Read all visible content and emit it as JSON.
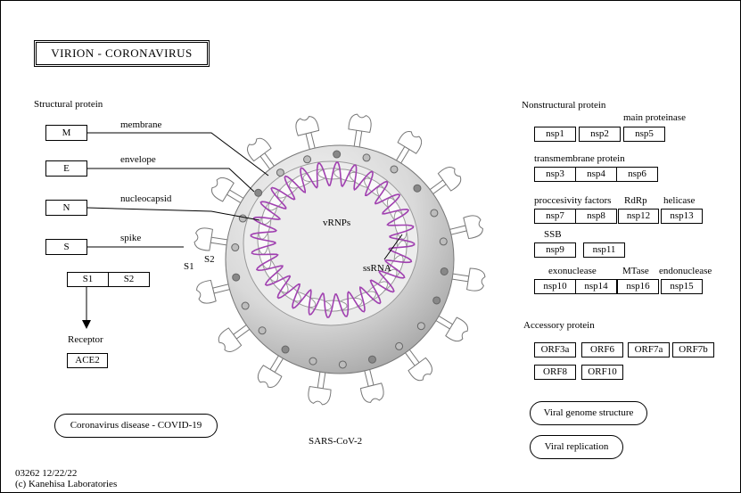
{
  "title": "VIRION  -  CORONAVIRUS",
  "structural": {
    "heading": "Structural protein",
    "proteins": [
      {
        "label": "M",
        "desc": "membrane"
      },
      {
        "label": "E",
        "desc": "envelope"
      },
      {
        "label": "N",
        "desc": "nucleocapsid"
      },
      {
        "label": "S",
        "desc": "spike"
      }
    ],
    "s_subunits": [
      "S1",
      "S2"
    ],
    "virion_labels": {
      "s1": "S1",
      "s2": "S2"
    },
    "receptor_heading": "Receptor",
    "receptor": "ACE2"
  },
  "virion": {
    "vrnps": "vRNPs",
    "ssrna": "ssRNA",
    "name": "SARS-CoV-2",
    "colors": {
      "rna": "#a040b0",
      "shell": "#d8d8d8",
      "inner": "#ececec"
    }
  },
  "nonstructural": {
    "heading": "Nonstructural protein",
    "group_labels": {
      "main_proteinase": "main proteinase",
      "transmembrane": "transmembrane protein",
      "processivity": "proccesivity factors",
      "rdrp": "RdRp",
      "helicase": "helicase",
      "ssb": "SSB",
      "exonuclease": "exonuclease",
      "mtase": "MTase",
      "endonuclease": "endonuclease"
    },
    "nsp": {
      "nsp1": "nsp1",
      "nsp2": "nsp2",
      "nsp5": "nsp5",
      "nsp3": "nsp3",
      "nsp4": "nsp4",
      "nsp6": "nsp6",
      "nsp7": "nsp7",
      "nsp8": "nsp8",
      "nsp12": "nsp12",
      "nsp13": "nsp13",
      "nsp9": "nsp9",
      "nsp11": "nsp11",
      "nsp10": "nsp10",
      "nsp14": "nsp14",
      "nsp16": "nsp16",
      "nsp15": "nsp15"
    }
  },
  "accessory": {
    "heading": "Accessory protein",
    "orf": {
      "orf3a": "ORF3a",
      "orf6": "ORF6",
      "orf7a": "ORF7a",
      "orf7b": "ORF7b",
      "orf8": "ORF8",
      "orf10": "ORF10"
    }
  },
  "links": {
    "disease": "Coronavirus disease - COVID-19",
    "genome": "Viral genome structure",
    "replication": "Viral replication"
  },
  "footer": {
    "id_date": "03262 12/22/22",
    "copyright": "(c) Kanehisa Laboratories"
  }
}
